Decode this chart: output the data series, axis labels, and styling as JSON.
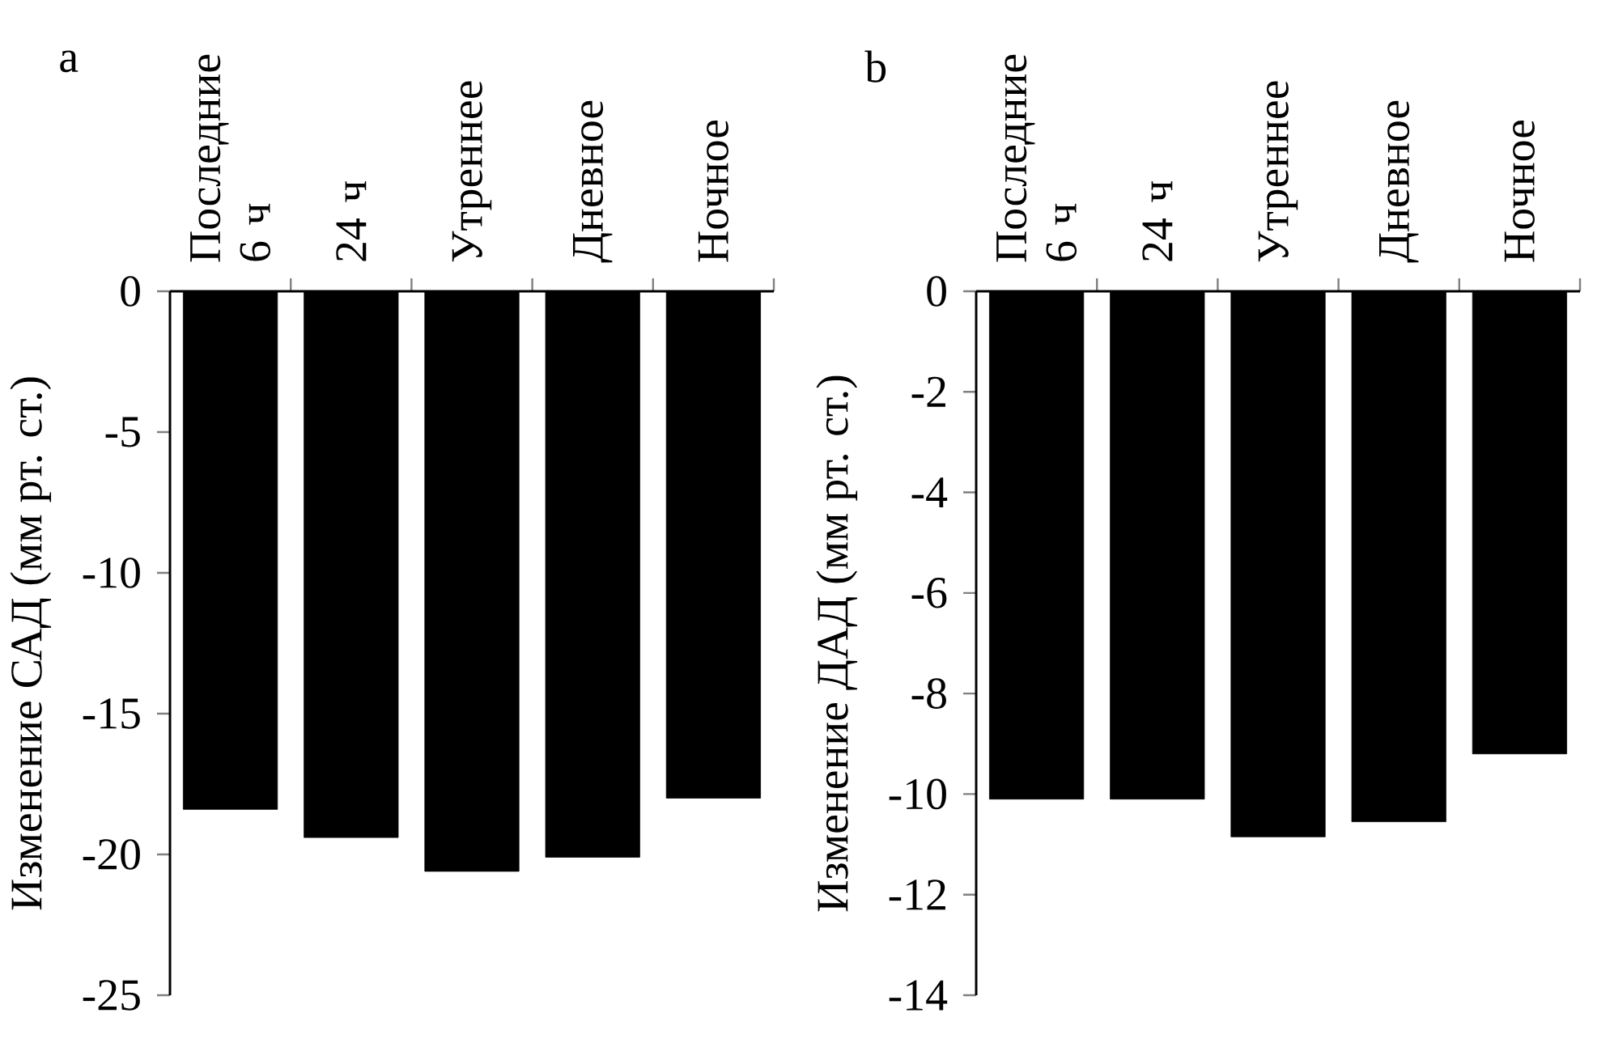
{
  "chart_data": [
    {
      "type": "bar",
      "title": "a",
      "ylabel": "Изменение САД (мм рт. ст.)",
      "categories": [
        "Последние 6 ч",
        "24 ч",
        "Утреннее",
        "Дневное",
        "Ночное"
      ],
      "values": [
        -18.4,
        -19.4,
        -20.6,
        -20.1,
        -18.0
      ],
      "color": "#000000",
      "ylim": [
        -25,
        0
      ],
      "yticks": [
        0,
        -5,
        -10,
        -15,
        -20,
        -25
      ]
    },
    {
      "type": "bar",
      "title": "b",
      "ylabel": "Изменение ДАД (мм рт. ст.)",
      "categories": [
        "Последние 6 ч",
        "24 ч",
        "Утреннее",
        "Дневное",
        "Ночное"
      ],
      "values": [
        -10.1,
        -10.1,
        -10.85,
        -10.55,
        -9.2
      ],
      "color": "#000000",
      "ylim": [
        -14,
        0
      ],
      "yticks": [
        0,
        -2,
        -4,
        -6,
        -8,
        -10,
        -12,
        -14
      ]
    }
  ]
}
